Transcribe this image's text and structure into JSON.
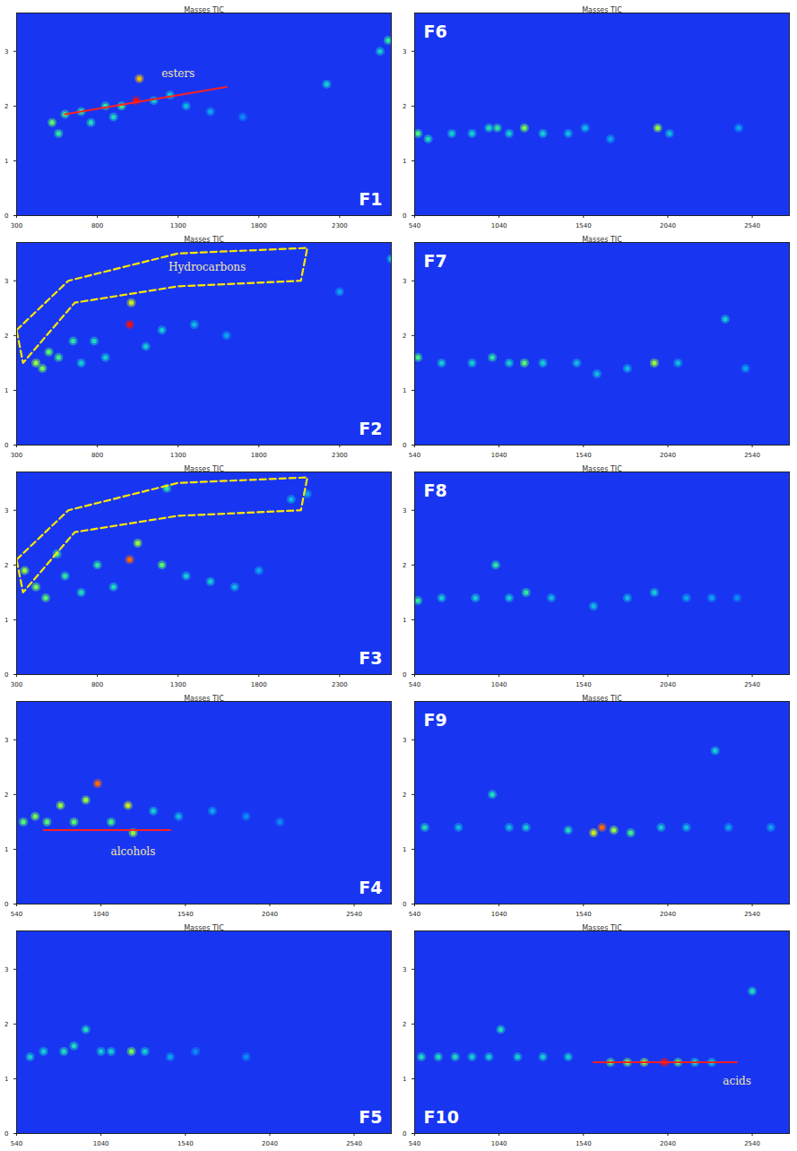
{
  "chart_data": [
    {
      "type": "heatmap",
      "panel": "F1",
      "title": "Masses TIC",
      "xlim": [
        300,
        2620
      ],
      "xticks": [
        300,
        800,
        1300,
        1800,
        2300
      ],
      "ylim": [
        0,
        3.7
      ],
      "yticks": [
        0,
        1,
        2,
        3
      ],
      "intensity_range": [
        0,
        100
      ],
      "peaks": {
        "x": [
          520,
          560,
          600,
          700,
          760,
          850,
          900,
          950,
          1040,
          1060,
          1150,
          1250,
          1350,
          1500,
          1700,
          2220,
          2600,
          2550
        ],
        "y": [
          1.7,
          1.5,
          1.85,
          1.9,
          1.7,
          2.0,
          1.8,
          2.0,
          2.1,
          2.5,
          2.1,
          2.2,
          2.0,
          1.9,
          1.8,
          2.4,
          3.2,
          3.0
        ],
        "intensity": [
          50,
          40,
          45,
          40,
          35,
          40,
          35,
          45,
          100,
          80,
          30,
          30,
          25,
          20,
          15,
          30,
          40,
          30
        ]
      },
      "annotations": [
        {
          "text": "esters",
          "x": 1300,
          "y": 2.6,
          "line": {
            "x": [
              600,
              1600
            ],
            "y": [
              1.85,
              2.35
            ]
          }
        }
      ]
    },
    {
      "type": "heatmap",
      "panel": "F2",
      "title": "Masses TIC",
      "xlim": [
        300,
        2620
      ],
      "xticks": [
        300,
        800,
        1300,
        1800,
        2300
      ],
      "ylim": [
        0,
        3.7
      ],
      "yticks": [
        0,
        1,
        2,
        3
      ],
      "intensity_range": [
        0,
        100
      ],
      "peaks": {
        "x": [
          420,
          460,
          500,
          560,
          650,
          700,
          780,
          850,
          1000,
          1010,
          1100,
          1200,
          1400,
          1600,
          2300,
          2620
        ],
        "y": [
          1.5,
          1.4,
          1.7,
          1.6,
          1.9,
          1.5,
          1.9,
          1.6,
          2.2,
          2.6,
          1.8,
          2.1,
          2.2,
          2.0,
          2.8,
          3.4
        ],
        "intensity": [
          60,
          55,
          50,
          45,
          40,
          30,
          35,
          30,
          100,
          70,
          30,
          30,
          25,
          20,
          20,
          30
        ]
      },
      "annotations": [
        {
          "text": "Hydrocarbons",
          "x": 1480,
          "y": 3.25,
          "region": {
            "x": [
              300,
              620,
              1300,
              2100,
              2060,
              1300,
              660,
              340
            ],
            "y": [
              2.1,
              3.0,
              3.5,
              3.6,
              3.0,
              2.9,
              2.6,
              1.5
            ]
          }
        }
      ]
    },
    {
      "type": "heatmap",
      "panel": "F3",
      "title": "Masses TIC",
      "xlim": [
        300,
        2620
      ],
      "xticks": [
        300,
        800,
        1300,
        1800,
        2300
      ],
      "ylim": [
        0,
        3.7
      ],
      "yticks": [
        0,
        1,
        2,
        3
      ],
      "intensity_range": [
        0,
        100
      ],
      "peaks": {
        "x": [
          350,
          420,
          480,
          550,
          600,
          700,
          800,
          900,
          1000,
          1050,
          1200,
          1230,
          1350,
          1500,
          1650,
          1800,
          2000,
          2100
        ],
        "y": [
          1.9,
          1.6,
          1.4,
          2.2,
          1.8,
          1.5,
          2.0,
          1.6,
          2.1,
          2.4,
          2.0,
          3.4,
          1.8,
          1.7,
          1.6,
          1.9,
          3.2,
          3.3
        ],
        "intensity": [
          60,
          55,
          50,
          45,
          40,
          35,
          40,
          35,
          90,
          60,
          50,
          40,
          30,
          30,
          25,
          20,
          25,
          20
        ]
      },
      "annotations": [
        {
          "region": {
            "x": [
              300,
              620,
              1300,
              2100,
              2060,
              1300,
              660,
              340
            ],
            "y": [
              2.1,
              3.0,
              3.5,
              3.6,
              3.0,
              2.9,
              2.6,
              1.5
            ]
          }
        }
      ]
    },
    {
      "type": "heatmap",
      "panel": "F4",
      "title": "Masses TIC",
      "xlim": [
        540,
        2760
      ],
      "xticks": [
        540,
        1040,
        1540,
        2040,
        2540
      ],
      "ylim": [
        0,
        3.7
      ],
      "yticks": [
        0,
        1,
        2,
        3
      ],
      "intensity_range": [
        0,
        100
      ],
      "peaks": {
        "x": [
          580,
          650,
          720,
          800,
          880,
          950,
          1020,
          1100,
          1200,
          1230,
          1350,
          1500,
          1700,
          1900,
          2100
        ],
        "y": [
          1.5,
          1.6,
          1.5,
          1.8,
          1.5,
          1.9,
          2.2,
          1.5,
          1.8,
          1.3,
          1.7,
          1.6,
          1.7,
          1.6,
          1.5
        ],
        "intensity": [
          50,
          55,
          50,
          60,
          50,
          60,
          90,
          45,
          70,
          60,
          30,
          25,
          20,
          15,
          15
        ]
      },
      "annotations": [
        {
          "text": "alcohols",
          "x": 1230,
          "y": 0.95,
          "line": {
            "x": [
              700,
              1450
            ],
            "y": [
              1.35,
              1.35
            ]
          }
        }
      ]
    },
    {
      "type": "heatmap",
      "panel": "F5",
      "title": "Masses TIC",
      "xlim": [
        540,
        2760
      ],
      "xticks": [
        540,
        1040,
        1540,
        2040,
        2540
      ],
      "ylim": [
        0,
        3.7
      ],
      "yticks": [
        0,
        1,
        2,
        3
      ],
      "intensity_range": [
        0,
        100
      ],
      "peaks": {
        "x": [
          620,
          700,
          820,
          880,
          950,
          1040,
          1100,
          1220,
          1300,
          1450,
          1600,
          1900
        ],
        "y": [
          1.4,
          1.5,
          1.5,
          1.6,
          1.9,
          1.5,
          1.5,
          1.5,
          1.5,
          1.4,
          1.5,
          1.4
        ],
        "intensity": [
          30,
          30,
          35,
          35,
          35,
          30,
          30,
          55,
          30,
          20,
          15,
          15
        ]
      },
      "annotations": []
    },
    {
      "type": "heatmap",
      "panel": "F6",
      "title": "Masses TIC",
      "xlim": [
        540,
        2760
      ],
      "xticks": [
        540,
        1040,
        1540,
        2040,
        2540
      ],
      "ylim": [
        0,
        3.7
      ],
      "yticks": [
        0,
        1,
        2,
        3
      ],
      "intensity_range": [
        0,
        100
      ],
      "peaks": {
        "x": [
          560,
          620,
          760,
          880,
          980,
          1030,
          1100,
          1190,
          1300,
          1450,
          1550,
          1700,
          1980,
          2050,
          2460
        ],
        "y": [
          1.5,
          1.4,
          1.5,
          1.5,
          1.6,
          1.6,
          1.5,
          1.6,
          1.5,
          1.5,
          1.6,
          1.4,
          1.6,
          1.5,
          1.6
        ],
        "intensity": [
          45,
          35,
          30,
          30,
          35,
          40,
          30,
          55,
          30,
          25,
          25,
          20,
          60,
          25,
          20
        ]
      },
      "annotations": []
    },
    {
      "type": "heatmap",
      "panel": "F7",
      "title": "Masses TIC",
      "xlim": [
        540,
        2760
      ],
      "xticks": [
        540,
        1040,
        1540,
        2040,
        2540
      ],
      "ylim": [
        0,
        3.7
      ],
      "yticks": [
        0,
        1,
        2,
        3
      ],
      "intensity_range": [
        0,
        100
      ],
      "peaks": {
        "x": [
          560,
          700,
          880,
          1000,
          1100,
          1190,
          1300,
          1500,
          1620,
          1800,
          1960,
          2100,
          2380,
          2500
        ],
        "y": [
          1.6,
          1.5,
          1.5,
          1.6,
          1.5,
          1.5,
          1.5,
          1.5,
          1.3,
          1.4,
          1.5,
          1.5,
          2.3,
          1.4
        ],
        "intensity": [
          45,
          30,
          30,
          40,
          30,
          50,
          30,
          25,
          25,
          25,
          60,
          25,
          30,
          20
        ]
      },
      "annotations": []
    },
    {
      "type": "heatmap",
      "panel": "F8",
      "title": "Masses TIC",
      "xlim": [
        540,
        2760
      ],
      "xticks": [
        540,
        1040,
        1540,
        2040,
        2540
      ],
      "ylim": [
        0,
        3.7
      ],
      "yticks": [
        0,
        1,
        2,
        3
      ],
      "intensity_range": [
        0,
        100
      ],
      "peaks": {
        "x": [
          560,
          700,
          900,
          1020,
          1100,
          1200,
          1350,
          1600,
          1800,
          1960,
          2150,
          2300,
          2450
        ],
        "y": [
          1.35,
          1.4,
          1.4,
          2.0,
          1.4,
          1.5,
          1.4,
          1.25,
          1.4,
          1.5,
          1.4,
          1.4,
          1.4
        ],
        "intensity": [
          40,
          30,
          30,
          40,
          30,
          40,
          25,
          25,
          25,
          30,
          20,
          20,
          15
        ]
      },
      "annotations": []
    },
    {
      "type": "heatmap",
      "panel": "F9",
      "title": "Masses TIC",
      "xlim": [
        540,
        2760
      ],
      "xticks": [
        540,
        1040,
        1540,
        2040,
        2540
      ],
      "ylim": [
        0,
        3.7
      ],
      "yticks": [
        0,
        1,
        2,
        3
      ],
      "intensity_range": [
        0,
        100
      ],
      "peaks": {
        "x": [
          600,
          800,
          1000,
          1100,
          1200,
          1450,
          1600,
          1650,
          1720,
          1820,
          2000,
          2150,
          2320,
          2400,
          2650
        ],
        "y": [
          1.4,
          1.4,
          2.0,
          1.4,
          1.4,
          1.35,
          1.3,
          1.4,
          1.35,
          1.3,
          1.4,
          1.4,
          2.8,
          1.4,
          1.4
        ],
        "intensity": [
          35,
          25,
          35,
          25,
          30,
          35,
          70,
          90,
          60,
          45,
          30,
          25,
          30,
          20,
          20
        ]
      },
      "annotations": []
    },
    {
      "type": "heatmap",
      "panel": "F10",
      "title": "Masses TIC",
      "xlim": [
        540,
        2760
      ],
      "xticks": [
        540,
        1040,
        1540,
        2040,
        2540
      ],
      "ylim": [
        0,
        3.7
      ],
      "yticks": [
        0,
        1,
        2,
        3
      ],
      "intensity_range": [
        0,
        100
      ],
      "peaks": {
        "x": [
          580,
          680,
          780,
          880,
          980,
          1050,
          1150,
          1300,
          1450,
          1700,
          1800,
          1900,
          2020,
          2100,
          2200,
          2300,
          2540
        ],
        "y": [
          1.4,
          1.4,
          1.4,
          1.4,
          1.4,
          1.9,
          1.4,
          1.4,
          1.4,
          1.3,
          1.3,
          1.3,
          1.3,
          1.3,
          1.3,
          1.3,
          2.6
        ],
        "intensity": [
          35,
          35,
          35,
          30,
          30,
          35,
          30,
          30,
          30,
          50,
          55,
          60,
          100,
          50,
          35,
          30,
          35
        ]
      },
      "annotations": [
        {
          "text": "acids",
          "x": 2450,
          "y": 0.95,
          "line": {
            "x": [
              1600,
              2450
            ],
            "y": [
              1.3,
              1.3
            ]
          }
        }
      ]
    }
  ]
}
